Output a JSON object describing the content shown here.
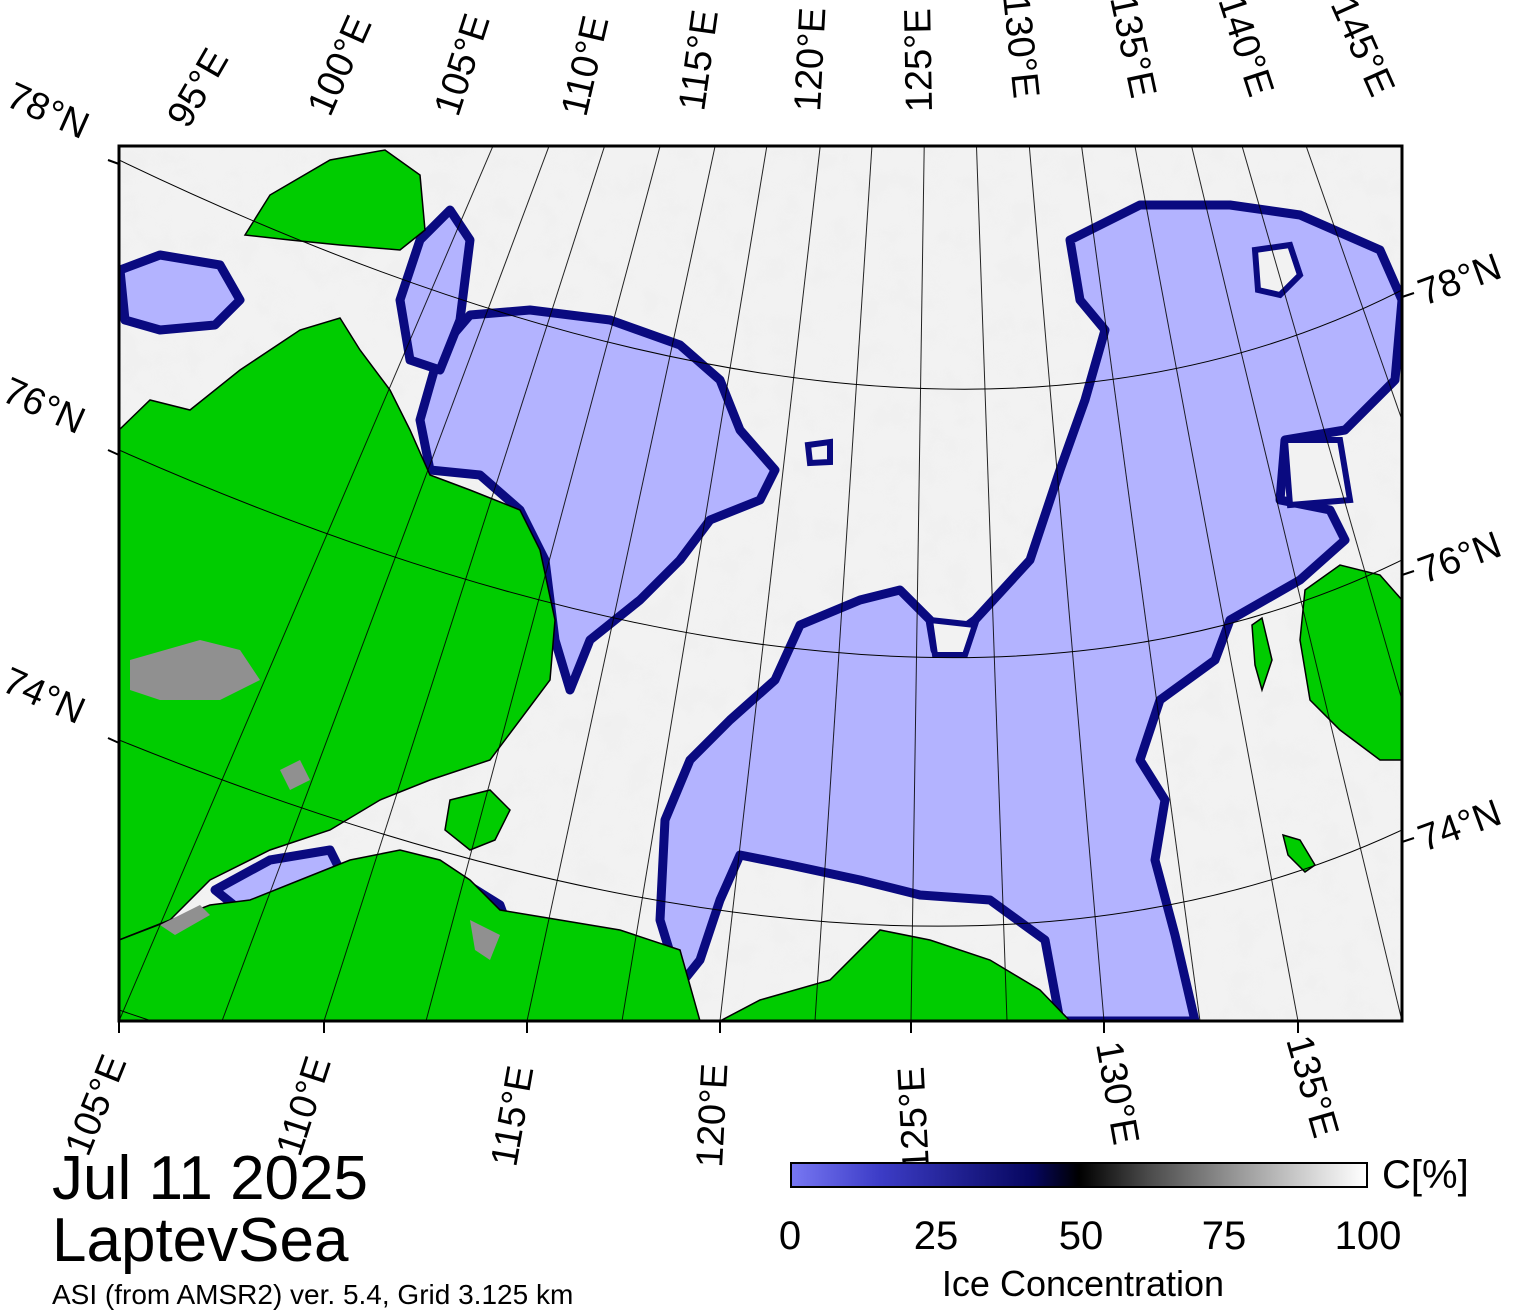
{
  "date": "Jul 11 2025",
  "region": "LaptevSea",
  "source": "ASI (from AMSR2) ver. 5.4,  Grid 3.125 km",
  "colorbar": {
    "unit": "C[%]",
    "title": "Ice Concentration",
    "ticks": [
      "0",
      "25",
      "50",
      "75",
      "100"
    ],
    "range": [
      0,
      100
    ]
  },
  "colors": {
    "land": "#00cc00",
    "open_water": "#b3b3ff",
    "ice_edge": "#0a0a80",
    "ice": "#f2f2f2",
    "land_ice": "#909090"
  },
  "graticule": {
    "top_labels": [
      "95°E",
      "100°E",
      "105°E",
      "110°E",
      "115°E",
      "120°E",
      "125°E",
      "130°E",
      "135°E",
      "140°E",
      "145°E"
    ],
    "bottom_labels": [
      "105°E",
      "110°E",
      "115°E",
      "120°E",
      "125°E",
      "130°E",
      "135°E"
    ],
    "left_labels": [
      "78°N",
      "76°N",
      "74°N"
    ],
    "right_labels": [
      "78°N",
      "76°N",
      "74°N"
    ]
  }
}
